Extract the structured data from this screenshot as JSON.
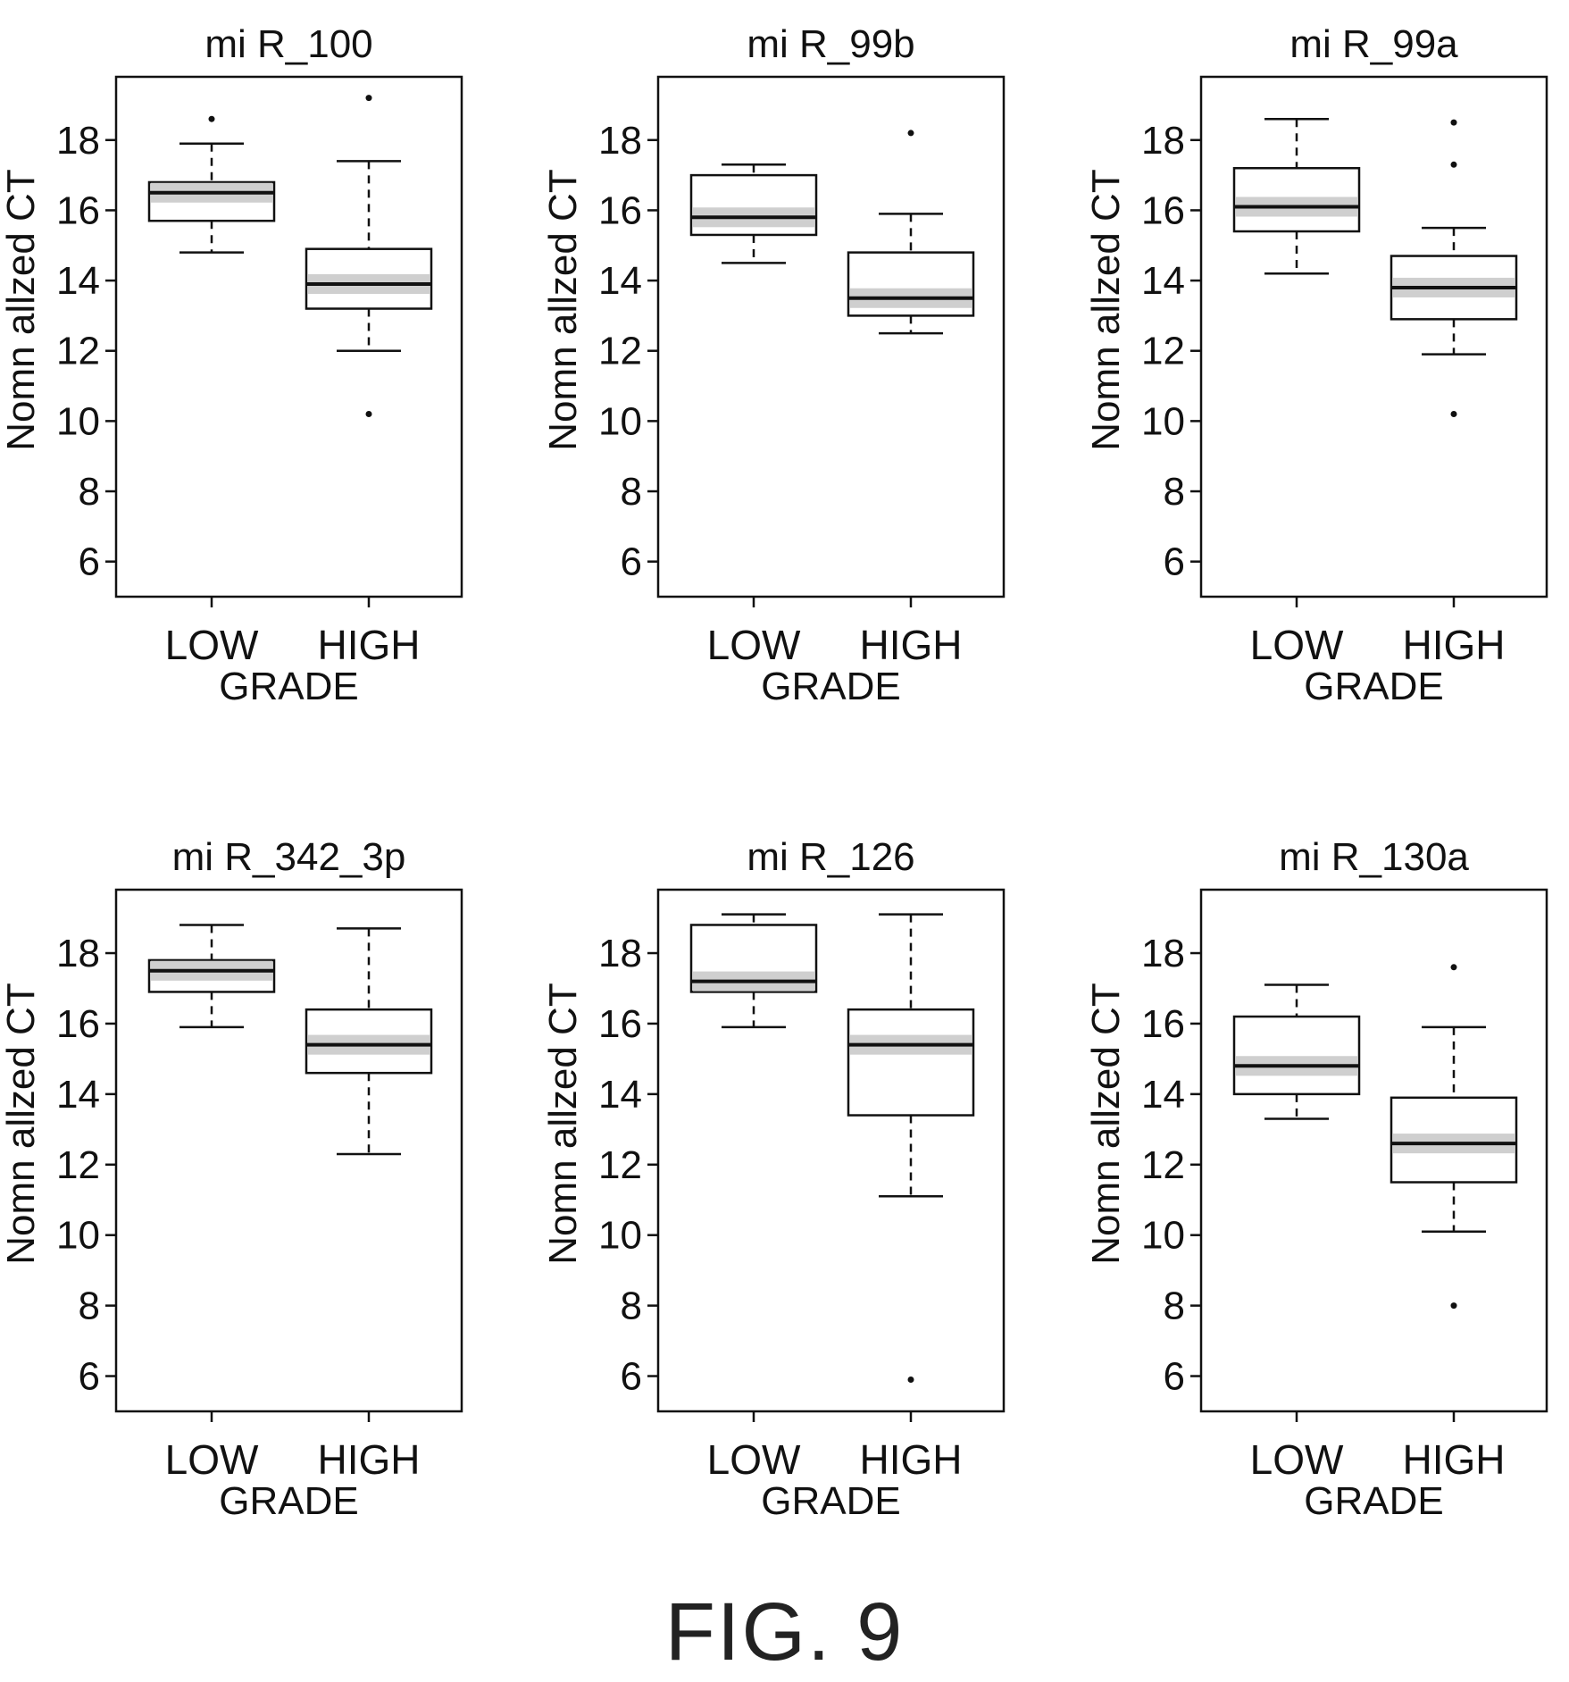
{
  "figure_caption": "FIG. 9",
  "colors": {
    "ink": "#111111",
    "box_fill": "#ffffff",
    "shade": "#cfcfcf"
  },
  "chart_data": [
    {
      "type": "boxplot",
      "title": "mi R_100",
      "xlabel": "GRADE",
      "ylabel": "Nomn allzed CT",
      "ylim": [
        5,
        19.8
      ],
      "yticks": [
        6,
        8,
        10,
        12,
        14,
        16,
        18
      ],
      "categories": [
        "LOW",
        "HIGH"
      ],
      "boxes": [
        {
          "whisker_low": 14.8,
          "q1": 15.7,
          "median": 16.5,
          "q3": 16.8,
          "whisker_high": 17.9,
          "outliers": [
            18.6
          ]
        },
        {
          "whisker_low": 12.0,
          "q1": 13.2,
          "median": 13.9,
          "q3": 14.9,
          "whisker_high": 17.4,
          "outliers": [
            19.2,
            10.2
          ]
        }
      ]
    },
    {
      "type": "boxplot",
      "title": "mi R_99b",
      "xlabel": "GRADE",
      "ylabel": "Nomn allzed CT",
      "ylim": [
        5,
        19.8
      ],
      "yticks": [
        6,
        8,
        10,
        12,
        14,
        16,
        18
      ],
      "categories": [
        "LOW",
        "HIGH"
      ],
      "boxes": [
        {
          "whisker_low": 14.5,
          "q1": 15.3,
          "median": 15.8,
          "q3": 17.0,
          "whisker_high": 17.3,
          "outliers": []
        },
        {
          "whisker_low": 12.5,
          "q1": 13.0,
          "median": 13.5,
          "q3": 14.8,
          "whisker_high": 15.9,
          "outliers": [
            18.2
          ]
        }
      ]
    },
    {
      "type": "boxplot",
      "title": "mi R_99a",
      "xlabel": "GRADE",
      "ylabel": "Nomn allzed CT",
      "ylim": [
        5,
        19.8
      ],
      "yticks": [
        6,
        8,
        10,
        12,
        14,
        16,
        18
      ],
      "categories": [
        "LOW",
        "HIGH"
      ],
      "boxes": [
        {
          "whisker_low": 14.2,
          "q1": 15.4,
          "median": 16.1,
          "q3": 17.2,
          "whisker_high": 18.6,
          "outliers": []
        },
        {
          "whisker_low": 11.9,
          "q1": 12.9,
          "median": 13.8,
          "q3": 14.7,
          "whisker_high": 15.5,
          "outliers": [
            18.5,
            17.3,
            10.2
          ]
        }
      ]
    },
    {
      "type": "boxplot",
      "title": "mi R_342_3p",
      "xlabel": "GRADE",
      "ylabel": "Nomn allzed CT",
      "ylim": [
        5,
        19.8
      ],
      "yticks": [
        6,
        8,
        10,
        12,
        14,
        16,
        18
      ],
      "categories": [
        "LOW",
        "HIGH"
      ],
      "boxes": [
        {
          "whisker_low": 15.9,
          "q1": 16.9,
          "median": 17.5,
          "q3": 17.8,
          "whisker_high": 18.8,
          "outliers": []
        },
        {
          "whisker_low": 12.3,
          "q1": 14.6,
          "median": 15.4,
          "q3": 16.4,
          "whisker_high": 18.7,
          "outliers": []
        }
      ]
    },
    {
      "type": "boxplot",
      "title": "mi R_126",
      "xlabel": "GRADE",
      "ylabel": "Nomn allzed CT",
      "ylim": [
        5,
        19.8
      ],
      "yticks": [
        6,
        8,
        10,
        12,
        14,
        16,
        18
      ],
      "categories": [
        "LOW",
        "HIGH"
      ],
      "boxes": [
        {
          "whisker_low": 15.9,
          "q1": 16.9,
          "median": 17.2,
          "q3": 18.8,
          "whisker_high": 19.1,
          "outliers": []
        },
        {
          "whisker_low": 11.1,
          "q1": 13.4,
          "median": 15.4,
          "q3": 16.4,
          "whisker_high": 19.1,
          "outliers": [
            5.9
          ]
        }
      ]
    },
    {
      "type": "boxplot",
      "title": "mi R_130a",
      "xlabel": "GRADE",
      "ylabel": "Nomn allzed CT",
      "ylim": [
        5,
        19.8
      ],
      "yticks": [
        6,
        8,
        10,
        12,
        14,
        16,
        18
      ],
      "categories": [
        "LOW",
        "HIGH"
      ],
      "boxes": [
        {
          "whisker_low": 13.3,
          "q1": 14.0,
          "median": 14.8,
          "q3": 16.2,
          "whisker_high": 17.1,
          "outliers": []
        },
        {
          "whisker_low": 10.1,
          "q1": 11.5,
          "median": 12.6,
          "q3": 13.9,
          "whisker_high": 15.9,
          "outliers": [
            17.6,
            8.0
          ]
        }
      ]
    }
  ]
}
